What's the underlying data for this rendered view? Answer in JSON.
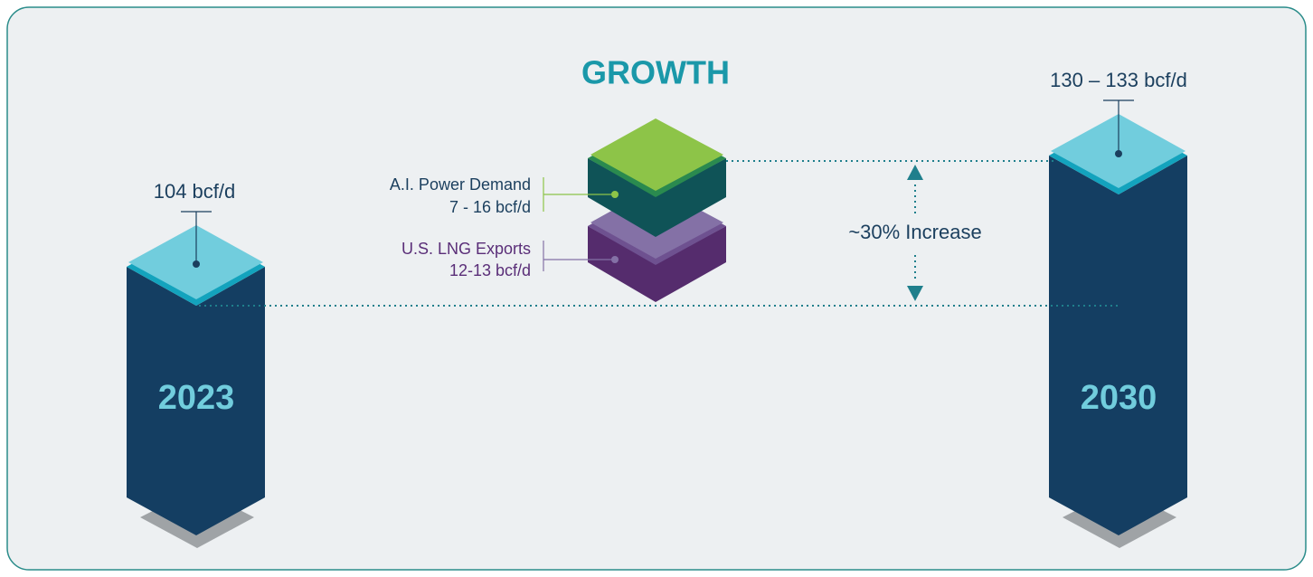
{
  "title": "GROWTH",
  "pillars": [
    {
      "year": "2023",
      "value": "104 bcf/d"
    },
    {
      "year": "2030",
      "value": "130 – 133 bcf/d"
    }
  ],
  "blocks": [
    {
      "name": "A.I. Power Demand",
      "value": "7 - 16 bcf/d"
    },
    {
      "name": "U.S. LNG Exports",
      "value": "12-13 bcf/d"
    }
  ],
  "increase": "~30% Increase"
}
